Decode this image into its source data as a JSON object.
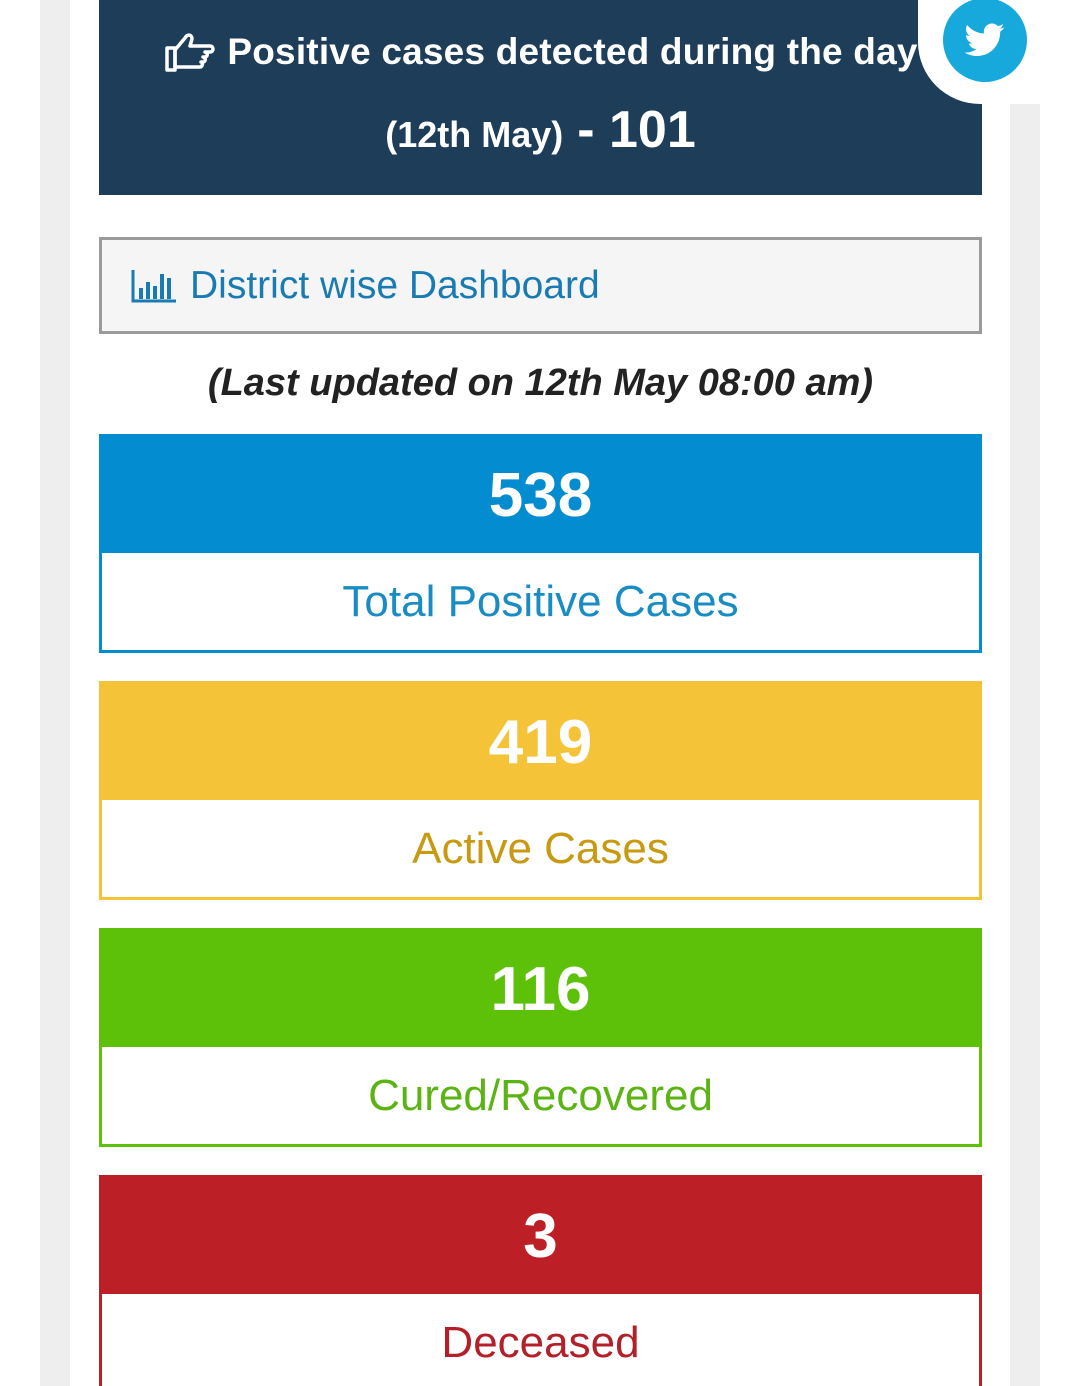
{
  "header": {
    "line1": "Positive cases detected during the day",
    "date": "(12th May)",
    "count": "- 101"
  },
  "dashboard_link": {
    "label": "District wise Dashboard"
  },
  "last_updated": "(Last updated on 12th May 08:00 am)",
  "stats": [
    {
      "value": "538",
      "label": "Total Positive Cases",
      "color": "#038dd0",
      "text_color": "#1a8cc4"
    },
    {
      "value": "419",
      "label": "Active Cases",
      "color": "#f5c338",
      "text_color": "#c79a12"
    },
    {
      "value": "116",
      "label": "Cured/Recovered",
      "color": "#5cc108",
      "text_color": "#5cb414"
    },
    {
      "value": "3",
      "label": "Deceased",
      "color": "#bd1f26",
      "text_color": "#b3202a"
    }
  ],
  "colors": {
    "header_bg": "#1e3d59",
    "twitter": "#17a8dc",
    "link": "#1a7bb3"
  },
  "icons": {
    "header": "hand-pointing-right-icon",
    "dashboard": "bar-chart-icon",
    "social": "twitter-icon"
  }
}
